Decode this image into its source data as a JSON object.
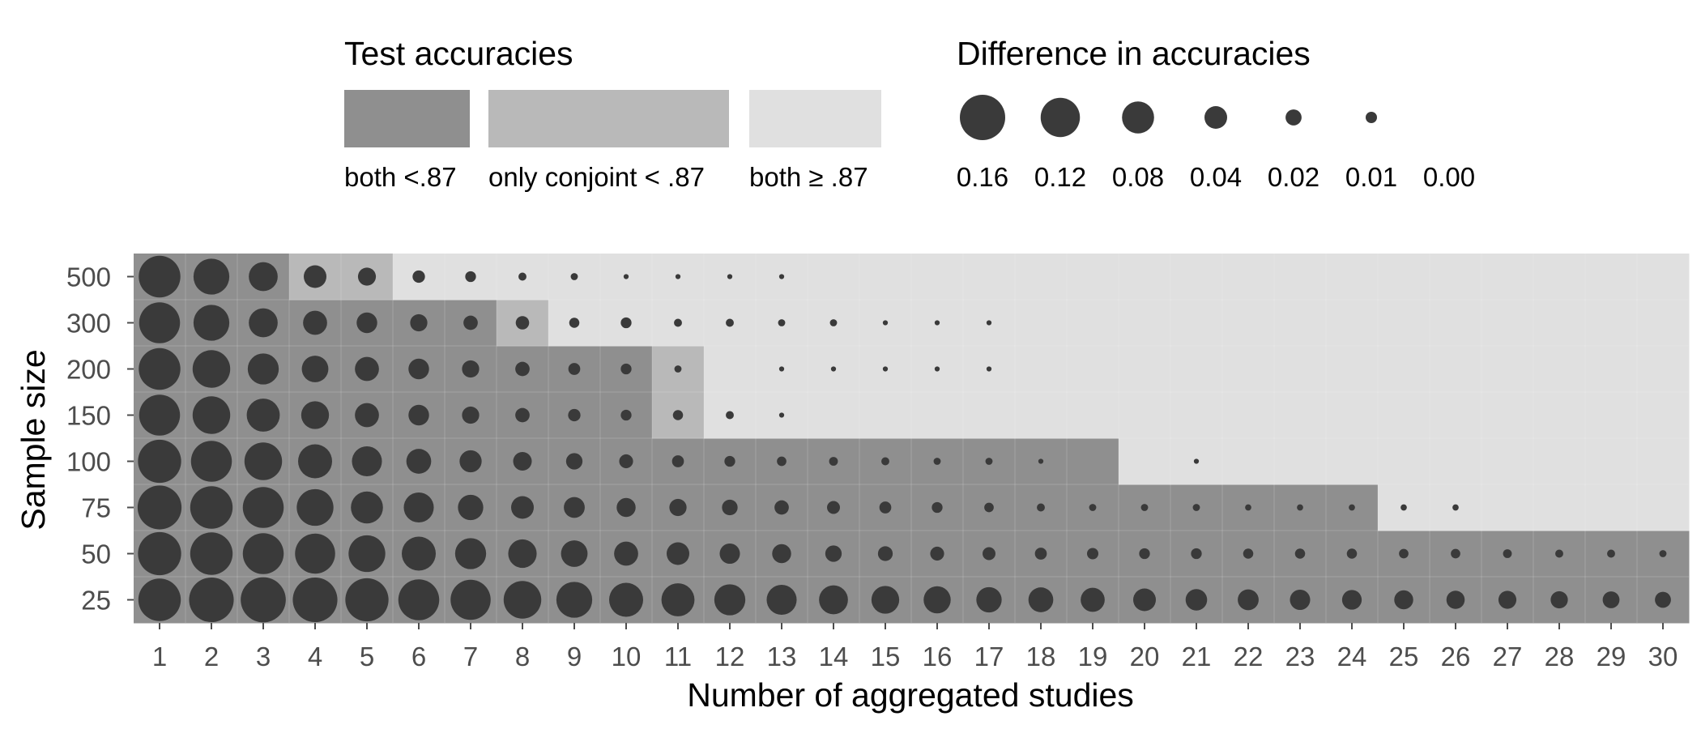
{
  "chart_data": {
    "type": "heatmap",
    "xlabel": "Number of aggregated studies",
    "ylabel": "Sample size",
    "x": [
      1,
      2,
      3,
      4,
      5,
      6,
      7,
      8,
      9,
      10,
      11,
      12,
      13,
      14,
      15,
      16,
      17,
      18,
      19,
      20,
      21,
      22,
      23,
      24,
      25,
      26,
      27,
      28,
      29,
      30
    ],
    "y_categories": [
      "25",
      "50",
      "75",
      "100",
      "150",
      "200",
      "300",
      "500"
    ],
    "fill_legend": {
      "title": "Test accuracies",
      "entries": [
        {
          "key": "both_low",
          "label": "both <.87",
          "color": "#8f8f8f"
        },
        {
          "key": "only_conjoint",
          "label": "only conjoint < .87",
          "color": "#b9b9b9"
        },
        {
          "key": "both_high",
          "label": "both ≥ .87",
          "color": "#e0e0e0"
        }
      ]
    },
    "size_legend": {
      "title": "Difference in accuracies",
      "values": [
        0.16,
        0.12,
        0.08,
        0.04,
        0.02,
        0.01,
        0.0
      ],
      "labels": [
        "0.16",
        "0.12",
        "0.08",
        "0.04",
        "0.02",
        "0.01",
        "0.00"
      ]
    },
    "fill_category_by_sample_size": {
      "25": {
        "both_low_through": 30,
        "only_conjoint": []
      },
      "50": {
        "both_low_through": 30,
        "only_conjoint": []
      },
      "75": {
        "both_low_through": 24,
        "only_conjoint": []
      },
      "100": {
        "both_low_through": 19,
        "only_conjoint": []
      },
      "150": {
        "both_low_through": 10,
        "only_conjoint": [
          11
        ]
      },
      "200": {
        "both_low_through": 10,
        "only_conjoint": [
          11
        ]
      },
      "300": {
        "both_low_through": 7,
        "only_conjoint": [
          8
        ]
      },
      "500": {
        "both_low_through": 3,
        "only_conjoint": [
          4,
          5
        ]
      }
    },
    "difference_by_sample_size": {
      "25": [
        0.14,
        0.155,
        0.158,
        0.155,
        0.145,
        0.13,
        0.125,
        0.11,
        0.1,
        0.09,
        0.085,
        0.075,
        0.07,
        0.065,
        0.06,
        0.057,
        0.05,
        0.048,
        0.045,
        0.04,
        0.036,
        0.034,
        0.032,
        0.03,
        0.028,
        0.026,
        0.025,
        0.023,
        0.022,
        0.02
      ],
      "50": [
        0.145,
        0.14,
        0.13,
        0.125,
        0.105,
        0.09,
        0.075,
        0.063,
        0.055,
        0.045,
        0.04,
        0.032,
        0.028,
        0.021,
        0.017,
        0.015,
        0.013,
        0.011,
        0.01,
        0.009,
        0.009,
        0.008,
        0.008,
        0.008,
        0.007,
        0.007,
        0.006,
        0.005,
        0.005,
        0.004
      ],
      "75": [
        0.15,
        0.14,
        0.13,
        0.105,
        0.08,
        0.07,
        0.05,
        0.04,
        0.034,
        0.028,
        0.023,
        0.019,
        0.016,
        0.013,
        0.011,
        0.009,
        0.007,
        0.005,
        0.004,
        0.004,
        0.004,
        0.003,
        0.003,
        0.003,
        0.003,
        0.003,
        0,
        0,
        0,
        0
      ],
      "100": [
        0.145,
        0.13,
        0.11,
        0.09,
        0.07,
        0.048,
        0.038,
        0.027,
        0.021,
        0.015,
        0.011,
        0.009,
        0.007,
        0.006,
        0.005,
        0.004,
        0.004,
        0.002,
        0,
        0,
        0.002,
        0,
        0,
        0,
        0,
        0,
        0,
        0,
        0,
        0
      ],
      "150": [
        0.13,
        0.11,
        0.085,
        0.06,
        0.045,
        0.033,
        0.023,
        0.016,
        0.012,
        0.009,
        0.008,
        0.005,
        0.002,
        0,
        0,
        0,
        0,
        0,
        0,
        0,
        0,
        0,
        0,
        0,
        0,
        0,
        0,
        0,
        0,
        0
      ],
      "200": [
        0.135,
        0.11,
        0.075,
        0.055,
        0.045,
        0.033,
        0.023,
        0.016,
        0.011,
        0.009,
        0.004,
        0,
        0.002,
        0.002,
        0.002,
        0.002,
        0.002,
        0,
        0,
        0,
        0,
        0,
        0,
        0,
        0,
        0,
        0,
        0,
        0,
        0
      ],
      "300": [
        0.13,
        0.1,
        0.065,
        0.045,
        0.033,
        0.023,
        0.016,
        0.014,
        0.008,
        0.009,
        0.005,
        0.005,
        0.004,
        0.004,
        0.002,
        0.002,
        0.002,
        0,
        0,
        0,
        0,
        0,
        0,
        0,
        0,
        0,
        0,
        0,
        0,
        0
      ],
      "500": [
        0.135,
        0.1,
        0.065,
        0.04,
        0.025,
        0.012,
        0.009,
        0.005,
        0.004,
        0.002,
        0.002,
        0.002,
        0.002,
        0,
        0,
        0,
        0,
        0,
        0,
        0,
        0,
        0,
        0,
        0,
        0,
        0,
        0,
        0,
        0,
        0
      ]
    }
  }
}
